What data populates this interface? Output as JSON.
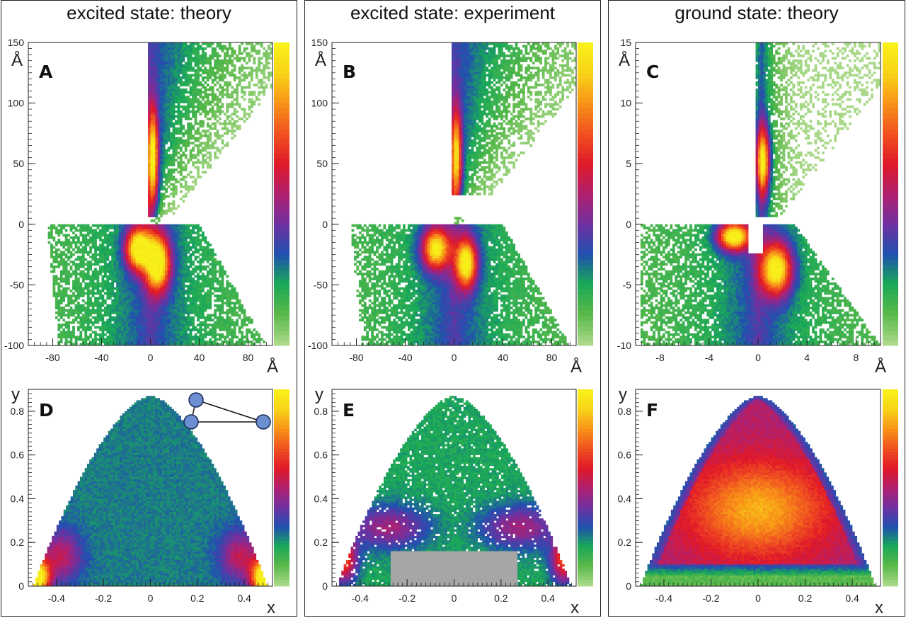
{
  "columns": [
    {
      "title": "excited state: theory"
    },
    {
      "title": "excited state: experiment"
    },
    {
      "title": "ground state: theory"
    }
  ],
  "colormap": [
    "#a8d888",
    "#58b848",
    "#18a858",
    "#2050b0",
    "#7030a0",
    "#b02070",
    "#e01828",
    "#f05020",
    "#f89018",
    "#f8d018",
    "#f8f018"
  ],
  "chart_data": [
    {
      "type": "heatmap",
      "panel": "A",
      "title": "",
      "xlabel": "Å",
      "ylabel": "Å",
      "xlim": [
        -100,
        100
      ],
      "ylim": [
        -100,
        150
      ],
      "xticks": [
        "-80",
        "-40",
        "0",
        "40",
        "80"
      ],
      "yticks": [
        "-100",
        "-50",
        "0",
        "50",
        "100",
        "150"
      ],
      "description_values": {
        "hotspots": [
          {
            "x": 0,
            "y": 55,
            "intensity": 1.0
          },
          {
            "x": -10,
            "y": -20,
            "intensity": 0.85
          },
          {
            "x": 5,
            "y": -30,
            "intensity": 0.85
          }
        ]
      }
    },
    {
      "type": "heatmap",
      "panel": "B",
      "title": "",
      "xlabel": "Å",
      "ylabel": "Å",
      "xlim": [
        -100,
        100
      ],
      "ylim": [
        -100,
        150
      ],
      "xticks": [
        "-80",
        "-40",
        "0",
        "40",
        "80"
      ],
      "yticks": [
        "-100",
        "-50",
        "0",
        "50",
        "100",
        "150"
      ],
      "description_values": {
        "hotspots": [
          {
            "x": 0,
            "y": 45,
            "intensity": 0.8
          },
          {
            "x": -15,
            "y": -20,
            "intensity": 0.75
          },
          {
            "x": 10,
            "y": -30,
            "intensity": 0.8
          }
        ]
      }
    },
    {
      "type": "heatmap",
      "panel": "C",
      "title": "",
      "xlabel": "Å",
      "ylabel": "Å",
      "xlim": [
        -10,
        10
      ],
      "ylim": [
        -10,
        15
      ],
      "xticks": [
        "-8",
        "-4",
        "0",
        "4",
        "8"
      ],
      "yticks": [
        "-10",
        "-5",
        "0",
        "5",
        "10",
        "15"
      ],
      "description_values": {
        "hotspots": [
          {
            "x": 0.4,
            "y": 5,
            "intensity": 0.95
          },
          {
            "x": -2,
            "y": -1,
            "intensity": 0.85
          },
          {
            "x": 1.5,
            "y": -3.5,
            "intensity": 0.8
          }
        ]
      }
    },
    {
      "type": "heatmap",
      "panel": "D",
      "title": "",
      "xlabel": "x",
      "ylabel": "y",
      "xlim": [
        -0.52,
        0.52
      ],
      "ylim": [
        0,
        0.9
      ],
      "xticks": [
        "-0.4",
        "-0.2",
        "0",
        "0.2",
        "0.4"
      ],
      "yticks": [
        "0",
        "0.2",
        "0.4",
        "0.6",
        "0.8"
      ],
      "description_values": {
        "hotspots": [
          {
            "x": -0.48,
            "y": 0.05,
            "intensity": 0.95
          },
          {
            "x": 0.48,
            "y": 0.05,
            "intensity": 0.95
          }
        ]
      }
    },
    {
      "type": "heatmap",
      "panel": "E",
      "title": "",
      "xlabel": "x",
      "ylabel": "y",
      "xlim": [
        -0.52,
        0.52
      ],
      "ylim": [
        0,
        0.9
      ],
      "xticks": [
        "-0.4",
        "-0.2",
        "0",
        "0.2",
        "0.4"
      ],
      "yticks": [
        "0",
        "0.2",
        "0.4",
        "0.6",
        "0.8"
      ],
      "masked_region": {
        "x": [
          -0.27,
          0.27
        ],
        "y": [
          0,
          0.16
        ]
      },
      "description_values": {
        "hotspots": [
          {
            "x": -0.48,
            "y": 0.12,
            "intensity": 0.7
          },
          {
            "x": 0.48,
            "y": 0.12,
            "intensity": 0.7
          }
        ]
      }
    },
    {
      "type": "heatmap",
      "panel": "F",
      "title": "",
      "xlabel": "x",
      "ylabel": "y",
      "xlim": [
        -0.52,
        0.52
      ],
      "ylim": [
        0,
        0.9
      ],
      "xticks": [
        "-0.4",
        "-0.2",
        "0",
        "0.2",
        "0.4"
      ],
      "yticks": [
        "0",
        "0.2",
        "0.4",
        "0.6",
        "0.8"
      ],
      "description_values": {
        "hotspots": [
          {
            "x": 0,
            "y": 0.35,
            "intensity": 0.9
          }
        ]
      }
    }
  ]
}
